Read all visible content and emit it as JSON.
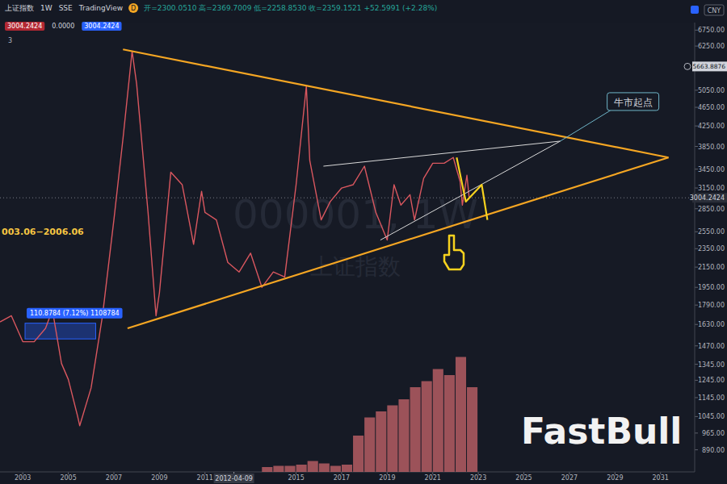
{
  "chart_data": {
    "type": "line",
    "title": "上证指数",
    "header": {
      "interval": "1W",
      "exchange": "SSE",
      "source": "TradingView",
      "badge": "D",
      "ohlc": "开=2300.0510 高=2369.7009 低=2258.8530 收=2359.1521 +52.5991 (+2.28%)",
      "values": [
        "3004.2424",
        "0.0000",
        "3004.2424"
      ],
      "count": "3"
    },
    "currency": "CNY",
    "watermark": [
      "000001, 1W",
      "上证指数"
    ],
    "log": "y",
    "grid": false,
    "color": "#d9575f",
    "xlim": [
      2002,
      2032.5
    ],
    "xticks": [
      2003,
      2005,
      2007,
      2009,
      2011,
      2015,
      2017,
      2019,
      2021,
      2023,
      2025,
      2027,
      2029,
      2031
    ],
    "ylim": [
      800,
      7000
    ],
    "yticks": [
      {
        "value": 6750,
        "label": "6750.00"
      },
      {
        "value": 6250,
        "label": "6250.00"
      },
      {
        "value": 5050,
        "label": "5050.00"
      },
      {
        "value": 4650,
        "label": "4650.00"
      },
      {
        "value": 4250,
        "label": "4250.00"
      },
      {
        "value": 3850,
        "label": "3850.00"
      },
      {
        "value": 3450,
        "label": "3450.00"
      },
      {
        "value": 3150,
        "label": "3150.00"
      },
      {
        "value": 2850,
        "label": "2850.00"
      },
      {
        "value": 2550,
        "label": "2550.00"
      },
      {
        "value": 2350,
        "label": "2350.00"
      },
      {
        "value": 2150,
        "label": "2150.00"
      },
      {
        "value": 1950,
        "label": "1950.00"
      },
      {
        "value": 1790,
        "label": "1790.00"
      },
      {
        "value": 1630,
        "label": "1630.00"
      },
      {
        "value": 1470,
        "label": "1470.00"
      },
      {
        "value": 1345,
        "label": "1345.00"
      },
      {
        "value": 1245,
        "label": "1245.00"
      },
      {
        "value": 1145,
        "label": "1145.00"
      },
      {
        "value": 1045,
        "label": "1045.00"
      },
      {
        "value": 965,
        "label": "965.00"
      },
      {
        "value": 890,
        "label": "890.00"
      }
    ],
    "x": [
      2002.0,
      2002.5,
      2003.0,
      2003.5,
      2004.0,
      2004.3,
      2004.7,
      2005.0,
      2005.4,
      2005.5,
      2006.0,
      2006.5,
      2007.0,
      2007.4,
      2007.8,
      2008.0,
      2008.5,
      2008.85,
      2009.0,
      2009.5,
      2010.0,
      2010.5,
      2010.85,
      2011.0,
      2011.5,
      2012.0,
      2012.5,
      2013.0,
      2013.5,
      2014.0,
      2014.5,
      2015.0,
      2015.45,
      2015.6,
      2016.1,
      2016.5,
      2017.0,
      2017.5,
      2018.0,
      2018.5,
      2019.0,
      2019.3,
      2019.6,
      2020.0,
      2020.2,
      2020.6,
      2021.0,
      2021.5,
      2021.9,
      2022.2,
      2022.3,
      2022.5,
      2022.6
    ],
    "values": [
      1650,
      1700,
      1500,
      1500,
      1600,
      1750,
      1350,
      1250,
      1050,
      1000,
      1200,
      1700,
      2700,
      4000,
      6100,
      5200,
      2800,
      1700,
      1900,
      3400,
      3200,
      2400,
      3100,
      2800,
      2700,
      2200,
      2100,
      2300,
      1950,
      2100,
      2050,
      3200,
      5150,
      3600,
      2700,
      2950,
      3150,
      3200,
      3500,
      2800,
      2450,
      3200,
      2900,
      3050,
      2700,
      3300,
      3550,
      3550,
      3650,
      3250,
      2900,
      3350,
      3000
    ],
    "last_price": {
      "value": 3004.2424,
      "label": "3004.2424"
    },
    "marker_price": {
      "value": 5663.8876,
      "label": "5663.8876"
    },
    "crosshair": {
      "x": 2012.27,
      "label": "2012-04-09"
    },
    "annotations": [
      {
        "points": [
          [
            2007.4,
            6150
          ],
          [
            2031.35,
            3650
          ]
        ],
        "color": "#f5a623"
      },
      {
        "points": [
          [
            2007.6,
            1600
          ],
          [
            2031.35,
            3650
          ]
        ],
        "color": "#f5a623"
      },
      {
        "points": [
          [
            2016.2,
            3500
          ],
          [
            2026.6,
            3950
          ]
        ],
        "color": "#d9d9d9"
      },
      {
        "points": [
          [
            2018.7,
            2450
          ],
          [
            2026.6,
            3950
          ]
        ],
        "color": "#d9d9d9"
      },
      {
        "points": [
          [
            2022.05,
            3650
          ],
          [
            2022.45,
            2950
          ],
          [
            2023.15,
            3200
          ],
          [
            2023.4,
            2700
          ]
        ],
        "color": "#f7d21e"
      }
    ],
    "callout": {
      "text": "牛市起点",
      "x": 2026.6,
      "y": 3950
    },
    "range_text": "003.06−2006.06",
    "measure": {
      "x": [
        2003.1,
        2006.2
      ],
      "y": [
        1520,
        1640
      ],
      "label": "110.8784 (7.12%) 1108784"
    },
    "volume": {
      "x": [
        2013.5,
        2014,
        2014.5,
        2015,
        2015.5,
        2016,
        2016.5,
        2017,
        2017.5,
        2018,
        2018.5,
        2019,
        2019.5,
        2020,
        2020.5,
        2021,
        2021.5,
        2022,
        2022.5
      ],
      "values": [
        4,
        5,
        5,
        6,
        9,
        7,
        5,
        6,
        30,
        45,
        50,
        55,
        60,
        70,
        75,
        85,
        80,
        95,
        70
      ],
      "ylim": [
        0,
        100
      ],
      "color": "#c9656b"
    },
    "logo": "FastBull"
  }
}
